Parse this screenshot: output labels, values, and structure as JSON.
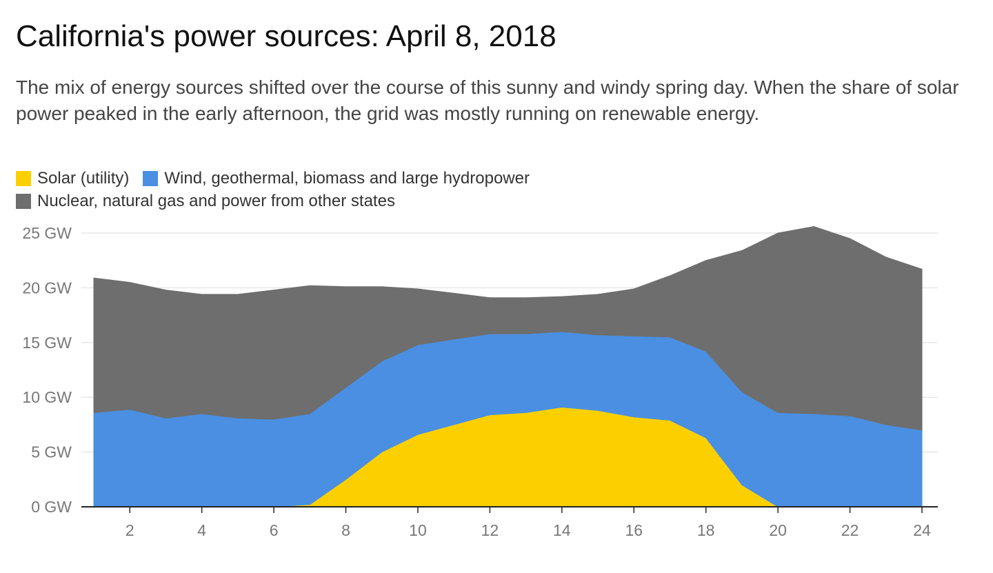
{
  "title": "California's power sources: April 8, 2018",
  "subtitle": "The mix of energy sources shifted over the course of this sunny and windy spring day. When the share of solar power peaked in the early afternoon, the grid was mostly running on renewable energy.",
  "chart_data": {
    "type": "area",
    "stacked": true,
    "title": "California's power sources: April 8, 2018",
    "xlabel": "",
    "ylabel": "",
    "x": [
      1,
      2,
      3,
      4,
      5,
      6,
      7,
      8,
      9,
      10,
      11,
      12,
      13,
      14,
      15,
      16,
      17,
      18,
      19,
      20,
      21,
      22,
      23,
      24
    ],
    "xlim": [
      1,
      24
    ],
    "ylim": [
      0,
      25
    ],
    "x_ticks": [
      2,
      4,
      6,
      8,
      10,
      12,
      14,
      16,
      18,
      20,
      22,
      24
    ],
    "x_tick_labels": [
      "2",
      "4",
      "6",
      "8",
      "10",
      "12",
      "14",
      "16",
      "18",
      "20",
      "22",
      "24"
    ],
    "y_ticks": [
      0,
      5,
      10,
      15,
      20,
      25
    ],
    "y_tick_labels": [
      "0 GW",
      "5 GW",
      "10 GW",
      "15 GW",
      "20 GW",
      "25 GW"
    ],
    "grid": true,
    "legend_position": "top-left",
    "series": [
      {
        "name": "Solar (utility)",
        "color": "#fcd000",
        "values": [
          0,
          0,
          0,
          0,
          0,
          0,
          0.2,
          2.5,
          5,
          6.6,
          7.5,
          8.4,
          8.6,
          9.1,
          8.8,
          8.2,
          7.9,
          6.3,
          2,
          0,
          0,
          0,
          0,
          0
        ]
      },
      {
        "name": "Wind, geothermal, biomass and large hydropower",
        "color": "#4a8fe2",
        "values": [
          8.6,
          8.9,
          8.1,
          8.5,
          8.1,
          8.0,
          8.3,
          8.4,
          8.3,
          8.2,
          7.8,
          7.4,
          7.2,
          6.9,
          6.9,
          7.4,
          7.6,
          7.9,
          8.5,
          8.6,
          8.5,
          8.3,
          7.5,
          7.0
        ]
      },
      {
        "name": "Nuclear, natural gas and power from other states",
        "color": "#6e6e6e",
        "values": [
          12.3,
          11.6,
          11.7,
          10.9,
          11.3,
          11.8,
          11.7,
          9.2,
          6.8,
          5.1,
          4.2,
          3.3,
          3.3,
          3.2,
          3.7,
          4.3,
          5.6,
          8.3,
          12.9,
          16.4,
          17.1,
          16.2,
          15.3,
          14.7
        ]
      }
    ]
  }
}
